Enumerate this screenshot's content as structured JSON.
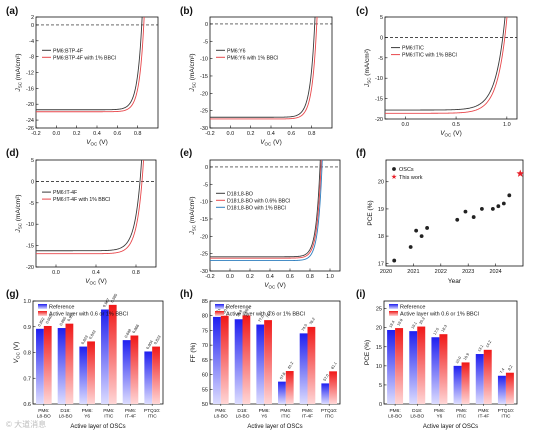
{
  "figure": {
    "watermark": "© 大道消息",
    "colors": {
      "black": "#3a3a3a",
      "red": "#e8474b",
      "blue": "#2f7fbf",
      "bar_blue_top": "#1f1ff0",
      "bar_blue_bottom": "#d9d9ff",
      "bar_red_top": "#f01818",
      "bar_red_bottom": "#ffd6d6",
      "star": "#e8202a"
    }
  },
  "chart_data": [
    {
      "id": "a",
      "type": "line",
      "panel_label": "(a)",
      "xlabel": "V_OC (V)",
      "ylabel": "J_SC (mA/cm²)",
      "xlim": [
        -0.2,
        1.0
      ],
      "ylim": [
        -26,
        2
      ],
      "xticks": [
        -0.2,
        0.0,
        0.2,
        0.4,
        0.6,
        0.8
      ],
      "yticks": [
        2,
        0,
        -4,
        -8,
        -12,
        -16,
        -20,
        -24,
        -26
      ],
      "ytick_labels": [
        "2",
        "0",
        "-4",
        "-8",
        "-12",
        "-16",
        "-20",
        "-24",
        "-26"
      ],
      "series": [
        {
          "name": "PM6:BTP-4F",
          "color": "black",
          "jsc": -21.4,
          "voc": 0.84,
          "curv": 0.045
        },
        {
          "name": "PM6:BTP-4F with 1% BBCl",
          "color": "red",
          "jsc": -21.9,
          "voc": 0.86,
          "curv": 0.045
        }
      ]
    },
    {
      "id": "b",
      "type": "line",
      "panel_label": "(b)",
      "xlabel": "V_OC (V)",
      "ylabel": "J_SC (mA/cm²)",
      "xlim": [
        -0.2,
        1.0
      ],
      "ylim": [
        -30,
        2
      ],
      "xticks": [
        -0.2,
        0.0,
        0.2,
        0.4,
        0.6,
        0.8
      ],
      "yticks": [
        0,
        -5,
        -10,
        -15,
        -20,
        -25,
        -30
      ],
      "ytick_labels": [
        "0",
        "-5",
        "-10",
        "-15",
        "-20",
        "-25",
        "-30"
      ],
      "series": [
        {
          "name": "PM6:Y6",
          "color": "black",
          "jsc": -26.9,
          "voc": 0.83,
          "curv": 0.045
        },
        {
          "name": "PM6:Y6 with 1% BBCl",
          "color": "red",
          "jsc": -27.4,
          "voc": 0.85,
          "curv": 0.045
        }
      ]
    },
    {
      "id": "c",
      "type": "line",
      "panel_label": "(c)",
      "xlabel": "V_OC (V)",
      "ylabel": "J_SC (mA/cm²)",
      "xlim": [
        -0.2,
        1.1
      ],
      "ylim": [
        -20,
        5
      ],
      "xticks": [
        0.0,
        0.5,
        1.0
      ],
      "yticks": [
        5,
        0,
        -5,
        -10,
        -15,
        -20
      ],
      "ytick_labels": [
        "5",
        "0",
        "-5",
        "-10",
        "-15",
        "-20"
      ],
      "series": [
        {
          "name": "PM6:ITIC",
          "color": "black",
          "jsc": -17.8,
          "voc": 0.96,
          "curv": 0.09
        },
        {
          "name": "PM6:ITIC with 1% BBCl",
          "color": "red",
          "jsc": -18.6,
          "voc": 0.98,
          "curv": 0.09
        }
      ]
    },
    {
      "id": "d",
      "type": "line",
      "panel_label": "(d)",
      "xlabel": "V_OC (V)",
      "ylabel": "J_SC (mA/cm²)",
      "xlim": [
        -0.2,
        1.0
      ],
      "ylim": [
        -20,
        5
      ],
      "xticks": [
        0.0,
        0.4,
        0.8
      ],
      "yticks": [
        5,
        0,
        -5,
        -10,
        -15,
        -20
      ],
      "ytick_labels": [
        "5",
        "0",
        "-5",
        "-10",
        "-15",
        "-20"
      ],
      "series": [
        {
          "name": "PM6:IT-4F",
          "color": "black",
          "jsc": -16.2,
          "voc": 0.84,
          "curv": 0.06
        },
        {
          "name": "PM6:IT-4F with 1% BBCl",
          "color": "red",
          "jsc": -16.9,
          "voc": 0.86,
          "curv": 0.06
        }
      ]
    },
    {
      "id": "e",
      "type": "line",
      "panel_label": "(e)",
      "xlabel": "V_OC (V)",
      "ylabel": "J_SC (mA/cm²)",
      "xlim": [
        -0.2,
        1.1
      ],
      "ylim": [
        -30,
        2
      ],
      "xticks": [
        -0.2,
        0.0,
        0.2,
        0.4,
        0.6,
        0.8,
        1.0
      ],
      "yticks": [
        0,
        -5,
        -10,
        -15,
        -20,
        -25,
        -30
      ],
      "ytick_labels": [
        "0",
        "-5",
        "-10",
        "-15",
        "-20",
        "-25",
        "-30"
      ],
      "series": [
        {
          "name": "D18:L8-BO",
          "color": "black",
          "jsc": -25.9,
          "voc": 0.9,
          "curv": 0.04
        },
        {
          "name": "D18:L8-BO with 0.6% BBCl",
          "color": "red",
          "jsc": -26.3,
          "voc": 0.91,
          "curv": 0.04
        },
        {
          "name": "D18:L8-BO with 1% BBCl",
          "color": "blue",
          "jsc": -27.0,
          "voc": 0.92,
          "curv": 0.04
        }
      ]
    },
    {
      "id": "f",
      "type": "scatter",
      "panel_label": "(f)",
      "xlabel": "Year",
      "ylabel": "PCE (%)",
      "xlim": [
        2020,
        2024.5
      ],
      "ylim": [
        17,
        21
      ],
      "xticks": [
        2020,
        2021,
        2022,
        2023,
        2024
      ],
      "xtick_labels": [
        "2020",
        "2021",
        "2022",
        "2023",
        "2024"
      ],
      "yticks": [
        17,
        18,
        19,
        20
      ],
      "ytick_labels": [
        "17",
        "18",
        "19",
        "20"
      ],
      "legend": [
        "OSCs",
        "This work"
      ],
      "points": [
        {
          "x": 2020.3,
          "y": 17.1
        },
        {
          "x": 2020.9,
          "y": 17.6
        },
        {
          "x": 2021.1,
          "y": 18.2
        },
        {
          "x": 2021.3,
          "y": 18.0
        },
        {
          "x": 2021.5,
          "y": 18.3
        },
        {
          "x": 2022.6,
          "y": 18.6
        },
        {
          "x": 2022.9,
          "y": 18.9
        },
        {
          "x": 2023.2,
          "y": 18.7
        },
        {
          "x": 2023.5,
          "y": 19.0
        },
        {
          "x": 2023.9,
          "y": 19.0
        },
        {
          "x": 2024.1,
          "y": 19.1
        },
        {
          "x": 2024.3,
          "y": 19.2
        },
        {
          "x": 2024.5,
          "y": 19.5
        }
      ],
      "this_work": {
        "x": 2024.9,
        "y": 20.3
      }
    },
    {
      "id": "g",
      "type": "bar",
      "panel_label": "(g)",
      "xlabel": "Active layer of OSCs",
      "ylabel": "V_OC (V)",
      "ylim": [
        0.6,
        1.0
      ],
      "yticks": [
        0.6,
        0.7,
        0.8,
        0.9,
        1.0
      ],
      "ytick_labels": [
        "0.6",
        "0.7",
        "0.8",
        "0.9",
        "1.0"
      ],
      "legend": [
        "Reference",
        "Active layer with 0.6 or 1% BBCl"
      ],
      "categories": [
        "PM6:L8-BO",
        "D18:L8-BO",
        "PM6:Y6",
        "PM6:ITIC",
        "PM6:IT-4F",
        "PTQ10:ITIC"
      ],
      "series": [
        {
          "name": "Reference",
          "values": [
            0.892,
            0.895,
            0.823,
            0.967,
            0.848,
            0.804
          ]
        },
        {
          "name": "Active layer with 0.6 or 1% BBCl",
          "values": [
            0.903,
            0.912,
            0.843,
            0.985,
            0.866,
            0.823
          ]
        }
      ],
      "value_labels": [
        [
          "0.892",
          "0.895",
          "0.823",
          "0.967",
          "0.848",
          "0.804"
        ],
        [
          "0.903",
          "0.912",
          "0.843",
          "0.985",
          "0.866",
          "0.823"
        ]
      ]
    },
    {
      "id": "h",
      "type": "bar",
      "panel_label": "(h)",
      "xlabel": "Active layer of OSCs",
      "ylabel": "FF (%)",
      "ylim": [
        50,
        85
      ],
      "yticks": [
        50,
        55,
        60,
        65,
        70,
        75,
        80,
        85
      ],
      "ytick_labels": [
        "50",
        "55",
        "60",
        "65",
        "70",
        "75",
        "80",
        "85"
      ],
      "legend": [
        "Reference",
        "Active layer with 0.6 or 1% BBCl"
      ],
      "categories": [
        "PM6:L8-BO",
        "D18:L8-BO",
        "PM6:Y6",
        "PM6:ITIC",
        "PM6:IT-4F",
        "PTQ10:ITIC"
      ],
      "series": [
        {
          "name": "Reference",
          "values": [
            79.6,
            78.8,
            77.0,
            57.6,
            74.0,
            57.0
          ]
        },
        {
          "name": "Active layer with 0.6 or 1% BBCl",
          "values": [
            80.0,
            80.1,
            78.5,
            61.2,
            76.2,
            61.1
          ]
        }
      ],
      "value_labels": [
        [
          "79.6",
          "78.8",
          "77.0",
          "57.6",
          "74.0",
          "57.0"
        ],
        [
          "80.0",
          "80.1",
          "78.5",
          "61.2",
          "76.2",
          "61.1"
        ]
      ]
    },
    {
      "id": "i",
      "type": "bar",
      "panel_label": "(i)",
      "xlabel": "Active layer of OSCs",
      "ylabel": "PCE (%)",
      "ylim": [
        0,
        27
      ],
      "yticks": [
        0,
        5,
        10,
        15,
        20,
        25
      ],
      "ytick_labels": [
        "0",
        "5",
        "10",
        "15",
        "20",
        "25"
      ],
      "legend": [
        "Reference",
        "Active layer with 0.6 or 1% BBCl"
      ],
      "categories": [
        "PM6:L8-BO",
        "D18:L8-BO",
        "PM6:Y6",
        "PM6:ITIC",
        "PM6:IT-4F",
        "PTQ10:ITIC"
      ],
      "series": [
        {
          "name": "Reference",
          "values": [
            19.4,
            19.1,
            17.5,
            10.0,
            13.1,
            7.4
          ]
        },
        {
          "name": "Active layer with 0.6 or 1% BBCl",
          "values": [
            19.9,
            20.3,
            18.3,
            10.9,
            14.2,
            8.2
          ]
        }
      ],
      "value_labels": [
        [
          "19.4",
          "19.1",
          "17.5",
          "10.0",
          "13.1",
          "7.4"
        ],
        [
          "19.9",
          "20.3",
          "18.3",
          "10.9",
          "14.2",
          "8.2"
        ]
      ]
    }
  ]
}
